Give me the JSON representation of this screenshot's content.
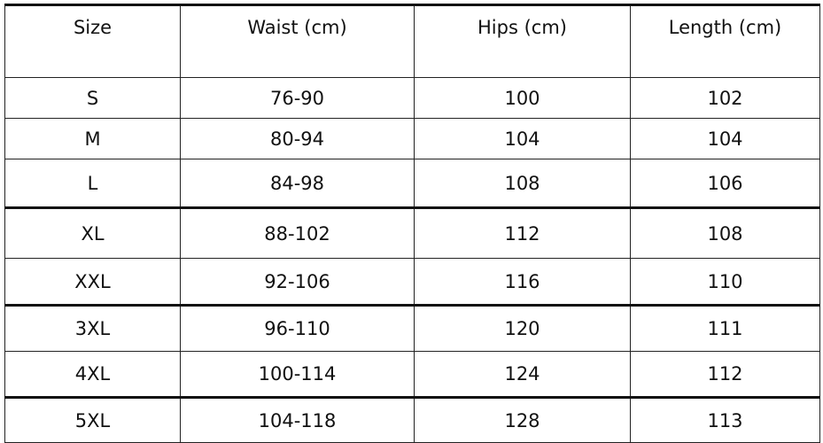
{
  "table": {
    "headers": [
      "Size",
      "Waist (cm)",
      "Hips (cm)",
      "Length (cm)"
    ],
    "rows": [
      [
        "S",
        "76-90",
        "100",
        "102"
      ],
      [
        "M",
        "80-94",
        "104",
        "104"
      ],
      [
        "L",
        "84-98",
        "108",
        "106"
      ],
      [
        "XL",
        "88-102",
        "112",
        "108"
      ],
      [
        "XXL",
        "92-106",
        "116",
        "110"
      ],
      [
        "3XL",
        "96-110",
        "120",
        "111"
      ],
      [
        "4XL",
        "100-114",
        "124",
        "112"
      ],
      [
        "5XL",
        "104-118",
        "128",
        "113"
      ]
    ]
  }
}
